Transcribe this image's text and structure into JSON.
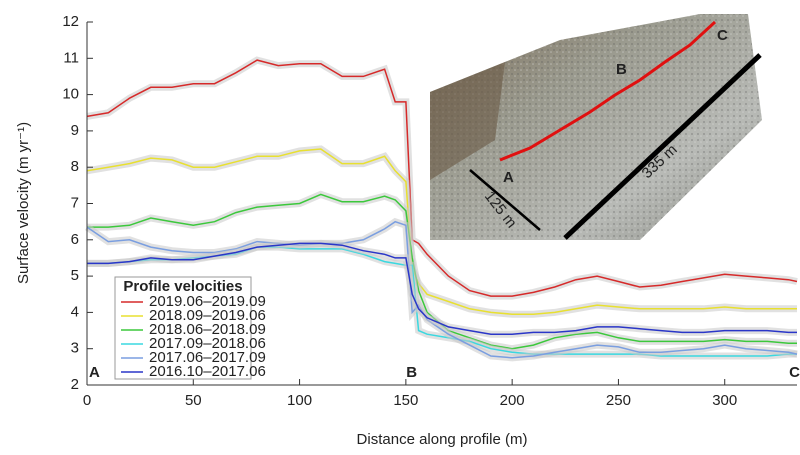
{
  "chart_data": {
    "type": "line",
    "y_label": "Surface velocity (m yr⁻¹)",
    "x_label": "Distance along profile (m)",
    "legend_title": "Profile velocities",
    "annotations": [
      "A",
      "B",
      "C"
    ],
    "x": [
      0,
      10,
      20,
      30,
      40,
      50,
      60,
      70,
      80,
      90,
      100,
      110,
      120,
      130,
      140,
      145,
      150,
      153,
      156,
      160,
      170,
      180,
      190,
      200,
      210,
      220,
      230,
      240,
      250,
      260,
      270,
      280,
      290,
      300,
      310,
      320,
      330,
      334
    ],
    "series": [
      {
        "name": "2019.06–2019.09",
        "color": "#d62a2a",
        "values": [
          9.4,
          9.5,
          9.9,
          10.2,
          10.2,
          10.3,
          10.3,
          10.6,
          10.95,
          10.8,
          10.85,
          10.85,
          10.5,
          10.5,
          10.7,
          9.8,
          9.8,
          6.0,
          5.9,
          5.6,
          5.0,
          4.6,
          4.45,
          4.45,
          4.55,
          4.7,
          4.9,
          5.0,
          4.85,
          4.7,
          4.75,
          4.85,
          4.95,
          5.05,
          5.0,
          4.95,
          4.9,
          4.85
        ]
      },
      {
        "name": "2018.09–2019.06",
        "color": "#e8e030",
        "values": [
          7.9,
          8.0,
          8.1,
          8.25,
          8.2,
          8.0,
          8.0,
          8.15,
          8.3,
          8.3,
          8.45,
          8.5,
          8.1,
          8.1,
          8.3,
          7.9,
          7.6,
          5.2,
          4.8,
          4.5,
          4.3,
          4.1,
          4.0,
          3.95,
          3.95,
          4.0,
          4.1,
          4.2,
          4.15,
          4.1,
          4.1,
          4.1,
          4.1,
          4.15,
          4.1,
          4.1,
          4.1,
          4.1
        ]
      },
      {
        "name": "2018.06–2018.09",
        "color": "#3cc83c",
        "values": [
          6.35,
          6.35,
          6.4,
          6.6,
          6.5,
          6.4,
          6.5,
          6.75,
          6.9,
          6.95,
          7.0,
          7.25,
          7.05,
          7.05,
          7.2,
          7.1,
          6.8,
          5.5,
          4.6,
          4.0,
          3.5,
          3.3,
          3.1,
          3.0,
          3.1,
          3.3,
          3.4,
          3.45,
          3.3,
          3.2,
          3.2,
          3.2,
          3.2,
          3.25,
          3.2,
          3.2,
          3.15,
          3.15
        ]
      },
      {
        "name": "2017.09–2018.06",
        "color": "#3ad8e0",
        "values": [
          5.35,
          5.35,
          5.4,
          5.45,
          5.45,
          5.5,
          5.55,
          5.6,
          5.8,
          5.8,
          5.75,
          5.75,
          5.75,
          5.6,
          5.4,
          5.35,
          5.3,
          5.3,
          3.5,
          3.4,
          3.3,
          3.2,
          3.0,
          2.9,
          2.85,
          2.85,
          2.85,
          2.85,
          2.85,
          2.85,
          2.8,
          2.8,
          2.8,
          2.8,
          2.8,
          2.8,
          2.85,
          2.85
        ]
      },
      {
        "name": "2017.06–2017.09",
        "color": "#7a9ee0",
        "values": [
          6.35,
          5.95,
          6.0,
          5.8,
          5.7,
          5.65,
          5.65,
          5.75,
          5.95,
          5.9,
          5.85,
          5.9,
          5.9,
          6.0,
          6.3,
          6.5,
          6.4,
          4.0,
          4.2,
          3.8,
          3.4,
          3.1,
          2.8,
          2.75,
          2.8,
          2.9,
          3.0,
          3.1,
          3.05,
          2.9,
          2.9,
          2.95,
          3.0,
          3.1,
          3.0,
          2.95,
          2.9,
          2.85
        ]
      },
      {
        "name": "2016.10–2017.06",
        "color": "#2a36c8",
        "values": [
          5.35,
          5.35,
          5.4,
          5.5,
          5.45,
          5.45,
          5.55,
          5.65,
          5.8,
          5.85,
          5.9,
          5.9,
          5.85,
          5.7,
          5.6,
          5.5,
          5.5,
          4.5,
          4.1,
          3.85,
          3.6,
          3.5,
          3.4,
          3.4,
          3.45,
          3.45,
          3.5,
          3.6,
          3.6,
          3.55,
          3.5,
          3.45,
          3.45,
          3.5,
          3.5,
          3.5,
          3.45,
          3.45
        ]
      }
    ],
    "xlim": [
      0,
      334
    ],
    "ylim": [
      2,
      12
    ],
    "xticks": [
      0,
      50,
      100,
      150,
      200,
      250,
      300
    ],
    "yticks": [
      2,
      3,
      4,
      5,
      6,
      7,
      8,
      9,
      10,
      11,
      12
    ]
  },
  "inset": {
    "labels": [
      "A",
      "B",
      "C",
      "125 m",
      "335 m"
    ]
  }
}
